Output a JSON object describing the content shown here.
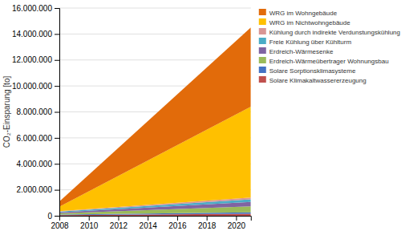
{
  "chart_data": {
    "type": "area",
    "stacked": true,
    "ylabel": "CO₂-Einsparung [to]",
    "x": [
      2008,
      2021
    ],
    "series": [
      {
        "name": "Solare Klimakaltwassererzeugung",
        "color": "#c0504d",
        "values": [
          50000,
          150000
        ]
      },
      {
        "name": "Solare Sorptionsklimasysteme",
        "color": "#4472c4",
        "values": [
          40000,
          120000
        ]
      },
      {
        "name": "Erdreich-Wärmeübertrager Wohnungsbau",
        "color": "#9bbb59",
        "values": [
          100000,
          450000
        ]
      },
      {
        "name": "Erdreich-Wärmesenke",
        "color": "#8064a2",
        "values": [
          80000,
          350000
        ]
      },
      {
        "name": "Freie Kühlung über Kühlturm",
        "color": "#4bacc6",
        "values": [
          50000,
          200000
        ]
      },
      {
        "name": "Kühlung durch indirekte Verdunstungskühlung",
        "color": "#d99694",
        "values": [
          30000,
          130000
        ]
      },
      {
        "name": "WRG im Nichtwohngebäude",
        "color": "#ffc000",
        "values": [
          350000,
          7000000
        ]
      },
      {
        "name": "WRG im Wohngebäude",
        "color": "#e26b0a",
        "values": [
          400000,
          6100000
        ]
      }
    ],
    "xlim": [
      2008,
      2021
    ],
    "xticks": [
      2008,
      2010,
      2012,
      2014,
      2016,
      2018,
      2020
    ],
    "ylim": [
      0,
      16000000
    ],
    "yticks": [
      0,
      {
        "value": 2000000,
        "label": "2.000.000"
      },
      {
        "value": 4000000,
        "label": "4.000.000"
      },
      {
        "value": 6000000,
        "label": "6.000.000"
      },
      {
        "value": 8000000,
        "label": "8.000.000"
      },
      {
        "value": 10000000,
        "label": "10.000.000"
      },
      {
        "value": 12000000,
        "label": "12.000.000"
      },
      {
        "value": 14000000,
        "label": "14.000.000"
      },
      {
        "value": 16000000,
        "label": "16.000.000"
      }
    ],
    "grid": true,
    "legend": "right"
  }
}
